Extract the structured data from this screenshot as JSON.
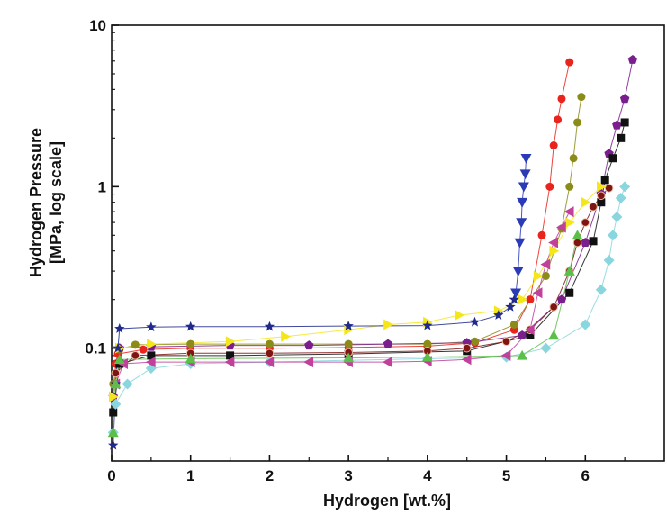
{
  "chart_data": {
    "type": "scatter",
    "xlabel": "Hydrogen [wt.%]",
    "ylabel_line1": "Hydrogen Pressure",
    "ylabel_line2": "[MPa, log scale]",
    "xlim": [
      0,
      7
    ],
    "ylim": [
      0.02,
      10
    ],
    "yscale": "log",
    "x_ticks": [
      "0",
      "1",
      "2",
      "3",
      "4",
      "5",
      "6"
    ],
    "y_ticks": [
      "10",
      "1",
      "0.1"
    ],
    "grid": false,
    "series": [
      {
        "color": "#e8241c",
        "marker": "circle",
        "points": [
          [
            0.02,
            0.05
          ],
          [
            0.05,
            0.08
          ],
          [
            0.08,
            0.092
          ],
          [
            0.4,
            0.098
          ],
          [
            1.0,
            0.1
          ],
          [
            2.0,
            0.1
          ],
          [
            3.0,
            0.101
          ],
          [
            4.0,
            0.103
          ],
          [
            4.6,
            0.108
          ],
          [
            5.1,
            0.13
          ],
          [
            5.3,
            0.2
          ],
          [
            5.45,
            0.5
          ],
          [
            5.55,
            1.0
          ],
          [
            5.6,
            1.8
          ],
          [
            5.65,
            2.6
          ],
          [
            5.7,
            3.5
          ],
          [
            5.8,
            5.9
          ]
        ]
      },
      {
        "color": "#8b8b1a",
        "marker": "circle",
        "points": [
          [
            0.02,
            0.06
          ],
          [
            0.1,
            0.098
          ],
          [
            0.3,
            0.105
          ],
          [
            1.0,
            0.106
          ],
          [
            2.0,
            0.106
          ],
          [
            3.0,
            0.106
          ],
          [
            4.0,
            0.106
          ],
          [
            4.6,
            0.11
          ],
          [
            5.1,
            0.14
          ],
          [
            5.5,
            0.28
          ],
          [
            5.7,
            0.55
          ],
          [
            5.8,
            1.0
          ],
          [
            5.85,
            1.5
          ],
          [
            5.9,
            2.5
          ],
          [
            5.95,
            3.6
          ]
        ]
      },
      {
        "color": "#7a1e8e",
        "marker": "pentagon",
        "points": [
          [
            0.02,
            0.05
          ],
          [
            0.1,
            0.1
          ],
          [
            0.5,
            0.102
          ],
          [
            1.5,
            0.104
          ],
          [
            2.5,
            0.104
          ],
          [
            3.5,
            0.106
          ],
          [
            4.5,
            0.108
          ],
          [
            5.2,
            0.12
          ],
          [
            5.7,
            0.2
          ],
          [
            6.0,
            0.45
          ],
          [
            6.2,
            0.9
          ],
          [
            6.3,
            1.6
          ],
          [
            6.4,
            2.4
          ],
          [
            6.5,
            3.5
          ],
          [
            6.6,
            6.1
          ]
        ]
      },
      {
        "color": "#111111",
        "marker": "square",
        "points": [
          [
            0.02,
            0.04
          ],
          [
            0.1,
            0.08
          ],
          [
            0.5,
            0.09
          ],
          [
            1.5,
            0.09
          ],
          [
            3.0,
            0.092
          ],
          [
            4.5,
            0.096
          ],
          [
            5.3,
            0.12
          ],
          [
            5.8,
            0.22
          ],
          [
            6.1,
            0.46
          ],
          [
            6.2,
            0.8
          ],
          [
            6.25,
            1.1
          ],
          [
            6.35,
            1.5
          ],
          [
            6.45,
            2.0
          ],
          [
            6.5,
            2.5
          ]
        ]
      },
      {
        "color": "#7e1414",
        "marker": "circle-open",
        "points": [
          [
            0.05,
            0.07
          ],
          [
            0.3,
            0.09
          ],
          [
            1.0,
            0.093
          ],
          [
            2.0,
            0.093
          ],
          [
            3.0,
            0.094
          ],
          [
            4.0,
            0.096
          ],
          [
            4.5,
            0.1
          ],
          [
            5.0,
            0.11
          ],
          [
            5.3,
            0.13
          ],
          [
            5.6,
            0.18
          ],
          [
            5.8,
            0.3
          ],
          [
            5.9,
            0.45
          ],
          [
            6.0,
            0.6
          ],
          [
            6.1,
            0.75
          ],
          [
            6.2,
            0.88
          ],
          [
            6.3,
            0.98
          ]
        ]
      },
      {
        "color": "#8ad6de",
        "marker": "diamond",
        "points": [
          [
            0.02,
            0.03
          ],
          [
            0.05,
            0.045
          ],
          [
            0.2,
            0.06
          ],
          [
            0.5,
            0.075
          ],
          [
            1.0,
            0.08
          ],
          [
            2.0,
            0.082
          ],
          [
            3.0,
            0.084
          ],
          [
            4.0,
            0.086
          ],
          [
            5.0,
            0.088
          ],
          [
            5.5,
            0.1
          ],
          [
            6.0,
            0.14
          ],
          [
            6.2,
            0.23
          ],
          [
            6.3,
            0.35
          ],
          [
            6.35,
            0.5
          ],
          [
            6.4,
            0.65
          ],
          [
            6.45,
            0.85
          ],
          [
            6.5,
            1.0
          ]
        ]
      },
      {
        "color": "#f5e61a",
        "marker": "triangle-right",
        "points": [
          [
            0.02,
            0.05
          ],
          [
            0.1,
            0.1
          ],
          [
            0.5,
            0.106
          ],
          [
            1.5,
            0.11
          ],
          [
            2.2,
            0.118
          ],
          [
            3.0,
            0.13
          ],
          [
            3.5,
            0.14
          ],
          [
            4.0,
            0.145
          ],
          [
            4.4,
            0.16
          ],
          [
            4.9,
            0.17
          ],
          [
            5.2,
            0.2
          ],
          [
            5.4,
            0.28
          ],
          [
            5.6,
            0.4
          ],
          [
            5.8,
            0.6
          ],
          [
            6.0,
            0.8
          ],
          [
            6.2,
            1.0
          ]
        ]
      },
      {
        "color": "#c0409c",
        "marker": "triangle-left",
        "points": [
          [
            0.05,
            0.06
          ],
          [
            0.15,
            0.08
          ],
          [
            0.5,
            0.082
          ],
          [
            1.0,
            0.082
          ],
          [
            1.5,
            0.082
          ],
          [
            2.0,
            0.082
          ],
          [
            2.5,
            0.082
          ],
          [
            3.0,
            0.082
          ],
          [
            3.5,
            0.082
          ],
          [
            4.0,
            0.083
          ],
          [
            4.5,
            0.085
          ],
          [
            5.0,
            0.09
          ],
          [
            5.3,
            0.13
          ],
          [
            5.4,
            0.22
          ],
          [
            5.5,
            0.33
          ],
          [
            5.6,
            0.45
          ],
          [
            5.7,
            0.56
          ],
          [
            5.8,
            0.7
          ]
        ]
      },
      {
        "color": "#1f2a8c",
        "marker": "star",
        "points": [
          [
            0.02,
            0.025
          ],
          [
            0.05,
            0.06
          ],
          [
            0.08,
            0.1
          ],
          [
            0.1,
            0.132
          ],
          [
            0.5,
            0.135
          ],
          [
            1.0,
            0.136
          ],
          [
            2.0,
            0.136
          ],
          [
            3.0,
            0.137
          ],
          [
            4.0,
            0.138
          ],
          [
            4.6,
            0.145
          ],
          [
            4.9,
            0.16
          ],
          [
            5.05,
            0.18
          ],
          [
            5.1,
            0.2
          ]
        ]
      },
      {
        "color": "#2a3bb5",
        "marker": "triangle-down",
        "points": [
          [
            5.12,
            0.22
          ],
          [
            5.15,
            0.3
          ],
          [
            5.17,
            0.45
          ],
          [
            5.19,
            0.6
          ],
          [
            5.2,
            0.8
          ],
          [
            5.22,
            1.0
          ],
          [
            5.24,
            1.2
          ],
          [
            5.25,
            1.5
          ]
        ]
      },
      {
        "color": "#5cbf4a",
        "marker": "triangle-up",
        "points": [
          [
            0.02,
            0.03
          ],
          [
            0.05,
            0.06
          ],
          [
            0.1,
            0.085
          ],
          [
            1.0,
            0.086
          ],
          [
            3.0,
            0.087
          ],
          [
            4.0,
            0.088
          ],
          [
            5.2,
            0.09
          ],
          [
            5.6,
            0.12
          ],
          [
            5.8,
            0.3
          ],
          [
            5.9,
            0.5
          ]
        ]
      }
    ]
  }
}
